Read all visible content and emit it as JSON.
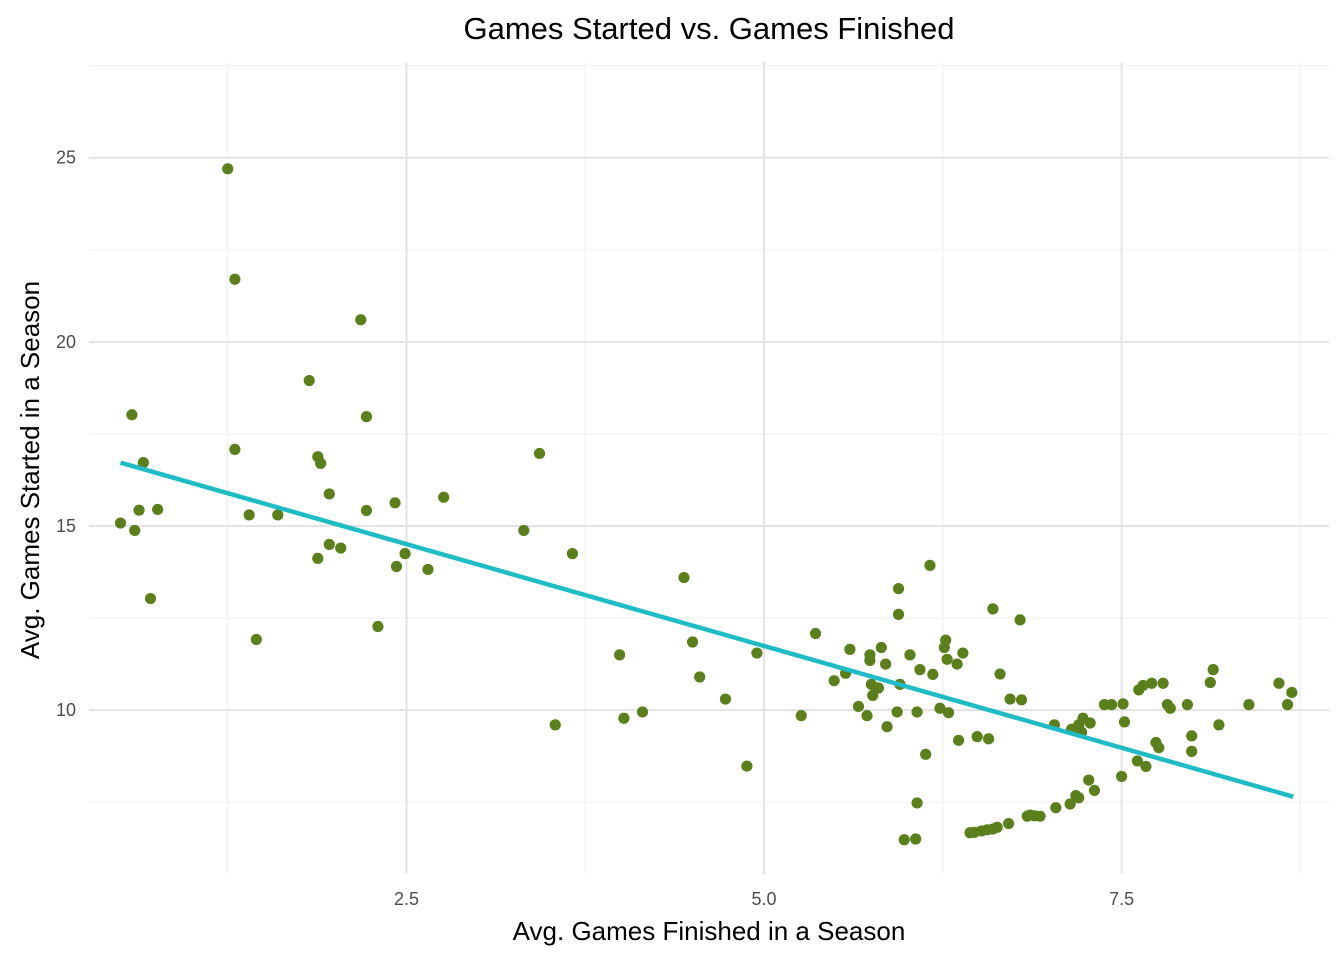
{
  "chart_data": {
    "type": "scatter",
    "title": "Games Started vs. Games Finished",
    "xlabel": "Avg. Games Finished in a Season",
    "ylabel": "Avg. Games Started in a Season",
    "xlim": [
      0.28,
      8.95
    ],
    "ylim": [
      5.55,
      27.6
    ],
    "x_ticks": [
      2.5,
      5.0,
      7.5
    ],
    "x_tick_labels": [
      "2.5",
      "5.0",
      "7.5"
    ],
    "y_ticks": [
      10,
      15,
      20,
      25
    ],
    "y_tick_labels": [
      "10",
      "15",
      "20",
      "25"
    ],
    "grid": true,
    "legend": "none",
    "point_color": "#5b7f1c",
    "line_color": "#1fbcc6",
    "trend_line": {
      "x": [
        0.5,
        8.7
      ],
      "y": [
        16.72,
        7.65
      ]
    },
    "points": [
      [
        1.25,
        24.7
      ],
      [
        1.3,
        21.7
      ],
      [
        2.18,
        20.6
      ],
      [
        1.82,
        18.95
      ],
      [
        0.58,
        18.02
      ],
      [
        2.22,
        17.97
      ],
      [
        1.3,
        17.08
      ],
      [
        3.43,
        16.97
      ],
      [
        1.88,
        16.88
      ],
      [
        1.9,
        16.7
      ],
      [
        0.66,
        16.72
      ],
      [
        1.96,
        15.87
      ],
      [
        2.76,
        15.78
      ],
      [
        2.42,
        15.63
      ],
      [
        0.76,
        15.45
      ],
      [
        0.63,
        15.43
      ],
      [
        2.22,
        15.42
      ],
      [
        1.4,
        15.3
      ],
      [
        1.6,
        15.3
      ],
      [
        0.5,
        15.08
      ],
      [
        0.6,
        14.88
      ],
      [
        3.32,
        14.88
      ],
      [
        1.96,
        14.5
      ],
      [
        2.04,
        14.4
      ],
      [
        2.49,
        14.25
      ],
      [
        3.66,
        14.25
      ],
      [
        1.88,
        14.12
      ],
      [
        2.43,
        13.9
      ],
      [
        2.65,
        13.82
      ],
      [
        4.44,
        13.6
      ],
      [
        0.71,
        13.03
      ],
      [
        2.3,
        12.27
      ],
      [
        1.45,
        11.92
      ],
      [
        3.99,
        11.5
      ],
      [
        4.5,
        11.85
      ],
      [
        4.55,
        10.9
      ],
      [
        4.73,
        10.3
      ],
      [
        4.02,
        9.78
      ],
      [
        4.15,
        9.95
      ],
      [
        3.54,
        9.6
      ],
      [
        4.88,
        8.48
      ],
      [
        4.95,
        11.55
      ],
      [
        5.26,
        9.85
      ],
      [
        5.36,
        12.08
      ],
      [
        5.49,
        10.8
      ],
      [
        5.57,
        11.0
      ],
      [
        5.6,
        11.65
      ],
      [
        5.66,
        10.1
      ],
      [
        5.72,
        9.85
      ],
      [
        5.74,
        11.5
      ],
      [
        5.74,
        11.35
      ],
      [
        5.75,
        10.7
      ],
      [
        5.76,
        10.4
      ],
      [
        5.8,
        10.6
      ],
      [
        5.82,
        11.7
      ],
      [
        5.85,
        11.25
      ],
      [
        5.86,
        9.55
      ],
      [
        5.93,
        9.95
      ],
      [
        5.94,
        13.3
      ],
      [
        5.94,
        12.6
      ],
      [
        5.95,
        10.7
      ],
      [
        6.02,
        11.5
      ],
      [
        6.07,
        9.95
      ],
      [
        6.09,
        11.1
      ],
      [
        6.13,
        8.8
      ],
      [
        6.16,
        13.93
      ],
      [
        6.18,
        10.97
      ],
      [
        6.23,
        10.05
      ],
      [
        6.26,
        11.7
      ],
      [
        6.27,
        11.9
      ],
      [
        6.28,
        11.38
      ],
      [
        6.29,
        9.93
      ],
      [
        6.35,
        11.25
      ],
      [
        6.36,
        9.18
      ],
      [
        6.39,
        11.55
      ],
      [
        6.49,
        9.28
      ],
      [
        6.57,
        9.22
      ],
      [
        6.6,
        12.75
      ],
      [
        6.65,
        10.98
      ],
      [
        6.72,
        10.3
      ],
      [
        6.79,
        12.45
      ],
      [
        6.8,
        10.28
      ],
      [
        7.03,
        9.6
      ],
      [
        7.15,
        9.48
      ],
      [
        7.18,
        9.45
      ],
      [
        7.2,
        9.6
      ],
      [
        7.22,
        9.4
      ],
      [
        7.23,
        9.78
      ],
      [
        7.28,
        9.65
      ],
      [
        7.38,
        10.15
      ],
      [
        7.43,
        10.15
      ],
      [
        7.51,
        10.17
      ],
      [
        7.52,
        9.68
      ],
      [
        7.61,
        8.62
      ],
      [
        7.62,
        10.55
      ],
      [
        7.65,
        10.67
      ],
      [
        7.67,
        8.47
      ],
      [
        7.71,
        10.73
      ],
      [
        7.74,
        9.12
      ],
      [
        7.76,
        8.98
      ],
      [
        7.79,
        10.73
      ],
      [
        7.82,
        10.15
      ],
      [
        7.84,
        10.05
      ],
      [
        7.96,
        10.15
      ],
      [
        7.99,
        9.3
      ],
      [
        7.99,
        8.88
      ],
      [
        8.12,
        10.75
      ],
      [
        8.14,
        11.1
      ],
      [
        8.18,
        9.6
      ],
      [
        8.39,
        10.15
      ],
      [
        8.6,
        10.73
      ],
      [
        8.66,
        10.15
      ],
      [
        8.69,
        10.48
      ],
      [
        7.5,
        8.2
      ],
      [
        7.27,
        8.1
      ],
      [
        7.31,
        7.82
      ],
      [
        7.2,
        7.62
      ],
      [
        7.18,
        7.68
      ],
      [
        7.14,
        7.45
      ],
      [
        7.04,
        7.35
      ],
      [
        6.93,
        7.12
      ],
      [
        6.89,
        7.13
      ],
      [
        6.86,
        7.15
      ],
      [
        6.84,
        7.12
      ],
      [
        6.71,
        6.92
      ],
      [
        6.63,
        6.82
      ],
      [
        6.6,
        6.77
      ],
      [
        6.56,
        6.75
      ],
      [
        6.52,
        6.72
      ],
      [
        6.47,
        6.68
      ],
      [
        6.44,
        6.67
      ],
      [
        6.07,
        7.48
      ],
      [
        6.06,
        6.5
      ],
      [
        5.98,
        6.48
      ]
    ]
  }
}
